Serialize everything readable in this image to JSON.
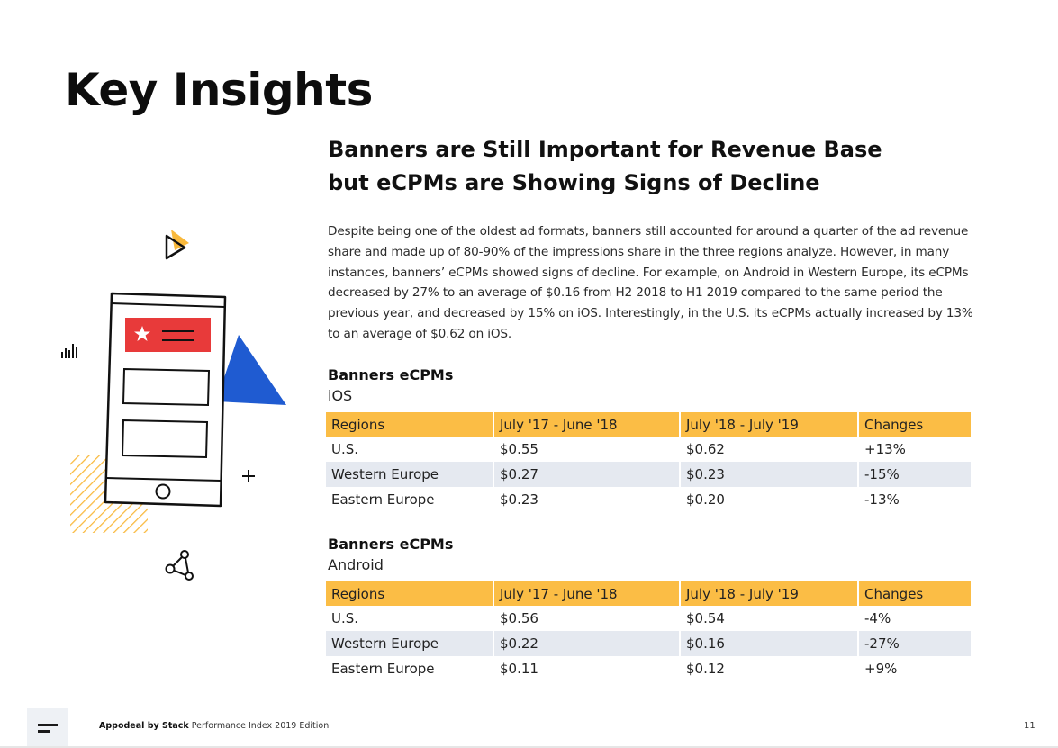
{
  "page": {
    "title": "Key Insights",
    "headline_line1": "Banners are Still Important for Revenue Base",
    "headline_line2": "but eCPMs are Showing Signs of Decline",
    "body": "Despite being one of the oldest ad formats, banners still accounted for around a quarter of the ad revenue share and made up of 80-90% of the impressions share in the three regions analyze. However, in many instances, banners’ eCPMs showed signs of decline. For example, on Android in Western Europe, its eCPMs decreased by 27% to an average of $0.16 from H2 2018 to H1 2019 compared to the same period the previous year, and decreased by 15% on iOS. Interestingly, in the U.S. its eCPMs actually increased by 13% to an average of $0.62 on iOS."
  },
  "tables": {
    "ios": {
      "title": "Banners eCPMs",
      "subtitle": "iOS",
      "headers": [
        "Regions",
        "July '17 - June '18",
        "July '18 - July '19",
        "Changes"
      ],
      "rows": [
        [
          "U.S.",
          "$0.55",
          "$0.62",
          "+13%"
        ],
        [
          "Western Europe",
          "$0.27",
          "$0.23",
          "-15%"
        ],
        [
          "Eastern Europe",
          "$0.23",
          "$0.20",
          "-13%"
        ]
      ]
    },
    "android": {
      "title": "Banners eCPMs",
      "subtitle": "Android",
      "headers": [
        "Regions",
        "July '17 - June '18",
        "July '18 - July '19",
        "Changes"
      ],
      "rows": [
        [
          "U.S.",
          "$0.56",
          "$0.54",
          "-4%"
        ],
        [
          "Western Europe",
          "$0.22",
          "$0.16",
          "-27%"
        ],
        [
          "Eastern Europe",
          "$0.11",
          "$0.12",
          "+9%"
        ]
      ]
    }
  },
  "footer": {
    "brand": "Appodeal by Stack",
    "edition": "Performance Index 2019 Edition",
    "page_number": "11"
  },
  "colors": {
    "table_header": "#fbbd45",
    "row_alt": "#e5e9f0",
    "accent_blue": "#1f5bd1",
    "accent_red": "#e83a3a",
    "accent_yellow": "#f9b93c"
  },
  "icons": [
    "play-icon",
    "phone-illustration",
    "star-icon",
    "bar-chart-icon",
    "plus-icon",
    "share-icon",
    "menu-logo-icon"
  ]
}
